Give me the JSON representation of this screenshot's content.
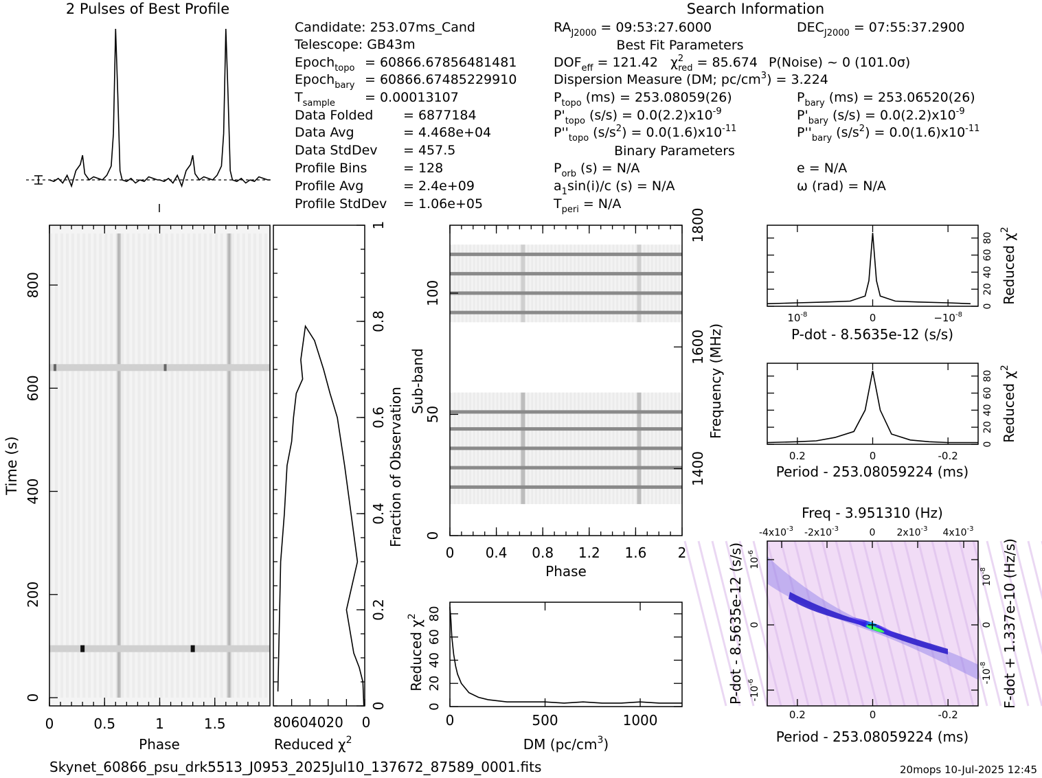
{
  "profile_title": "2 Pulses of Best Profile",
  "search_title": "Search Information",
  "best_fit_title": "Best Fit Parameters",
  "binary_title": "Binary Parameters",
  "file_name": "Skynet_60866_psu_drk5513_J0953_2025Jul10_137672_87589_0001.fits",
  "timestamp": "20mops  10-Jul-2025 12:45",
  "info_left": [
    {
      "label": "Candidate:  253.07ms_Cand",
      "value": ""
    },
    {
      "label": "Telescope:  GB43m",
      "value": ""
    },
    {
      "label": "Epoch",
      "sub": "topo",
      "value": "= 60866.67856481481"
    },
    {
      "label": "Epoch",
      "sub": "bary",
      "value": "= 60866.67485229910"
    },
    {
      "label": "T",
      "sub": "sample",
      "value": "=    0.00013107"
    },
    {
      "label": "Data Folded",
      "value": "=    6877184"
    },
    {
      "label": "Data Avg",
      "value": "=    4.468e+04"
    },
    {
      "label": "Data StdDev",
      "value": "=    457.5"
    },
    {
      "label": "Profile Bins",
      "value": "=    128"
    },
    {
      "label": "Profile Avg",
      "value": "=    2.4e+09"
    },
    {
      "label": "Profile StdDev",
      "value": "=    1.06e+05"
    }
  ],
  "info_mid": {
    "ra": "RA",
    "ra_sub": "J2000",
    "ra_val": "= 09:53:27.6000",
    "dec": "DEC",
    "dec_sub": "J2000",
    "dec_val": "= 07:55:37.2900",
    "dof": "DOF",
    "dof_sub": "eff",
    "dof_val": "= 121.42",
    "chi": "χ",
    "chi_sup": "2",
    "chi_sub": "red",
    "chi_val": "= 85.674",
    "pnoise": "P(Noise) ~ 0    (101.0σ)",
    "dm": "Dispersion Measure (DM; pc/cm",
    "dm_sup": "3",
    "dm_val": ") = 3.224",
    "ptopo": "P",
    "ptopo_sub": "topo",
    "ptopo_val": "(ms) =  253.08059(26)",
    "pbary": "P",
    "pbary_sub": "bary",
    "pbary_val": "(ms) =  253.06520(26)",
    "pdtopo": "P'",
    "pdtopo_sub": "topo",
    "pdtopo_val": "(s/s) = 0.0(2.2)x10",
    "pdtopo_exp": "-9",
    "pdbary": "P'",
    "pdbary_sub": "bary",
    "pdbary_val": "(s/s) = 0.0(2.2)x10",
    "pdbary_exp": "-9",
    "pddtopo": "P''",
    "pddtopo_sub": "topo",
    "pddtopo_val": "(s/s",
    "pddtopo_sup2": "2",
    "pddtopo_val2": ") = 0.0(1.6)x10",
    "pddtopo_exp": "-11",
    "pddbary": "P''",
    "pddbary_sub": "bary",
    "pddbary_val": "(s/s",
    "pddbary_sup2": "2",
    "pddbary_val2": ") = 0.0(1.6)x10",
    "pddbary_exp": "-11",
    "porb": "P",
    "porb_sub": "orb",
    "porb_val": "(s) = N/A",
    "ecc": "e = N/A",
    "a1": "a",
    "a1_sub": "1",
    "a1_val": "sin(i)/c (s) = N/A",
    "omega": "ω (rad) = N/A",
    "tperi": "T",
    "tperi_sub": "peri",
    "tperi_val": "= N/A"
  },
  "chart_data": [
    {
      "type": "line",
      "name": "profile",
      "title": "2 Pulses of Best Profile",
      "x": [
        0,
        0.04,
        0.08,
        0.12,
        0.16,
        0.2,
        0.24,
        0.28,
        0.3,
        0.32,
        0.36,
        0.4,
        0.44,
        0.48,
        0.52,
        0.56,
        0.58,
        0.6,
        0.62,
        0.64,
        0.66,
        0.7,
        0.74,
        0.78,
        0.82,
        0.86,
        0.9,
        0.94,
        0.98,
        1.0,
        1.04,
        1.08,
        1.12,
        1.16,
        1.2,
        1.24,
        1.28,
        1.3,
        1.32,
        1.36,
        1.4,
        1.44,
        1.48,
        1.52,
        1.56,
        1.58,
        1.6,
        1.62,
        1.64,
        1.66,
        1.7,
        1.74,
        1.78,
        1.82,
        1.86,
        1.9,
        1.94,
        1.98,
        2.0
      ],
      "y": [
        0.0,
        -0.01,
        0.01,
        -0.02,
        0.03,
        -0.04,
        0.06,
        0.1,
        0.16,
        0.04,
        0.0,
        0.02,
        0.01,
        0.0,
        0.03,
        0.09,
        0.3,
        0.98,
        0.55,
        0.06,
        0.0,
        -0.01,
        0.01,
        -0.02,
        0.0,
        -0.01,
        0.02,
        0.01,
        0.0,
        0.0,
        -0.01,
        0.01,
        -0.02,
        0.03,
        -0.04,
        0.06,
        0.1,
        0.16,
        0.04,
        0.0,
        0.02,
        0.01,
        0.0,
        0.03,
        0.09,
        0.3,
        0.98,
        0.55,
        0.06,
        0.0,
        -0.01,
        0.01,
        -0.02,
        0.0,
        -0.01,
        0.02,
        0.01,
        0.0,
        0.0
      ]
    },
    {
      "type": "heatmap",
      "name": "time-phase",
      "xlabel": "Phase",
      "ylabel": "Time (s)",
      "xlim": [
        0,
        2
      ],
      "ylim": [
        0,
        900
      ],
      "x_ticks": [
        "0",
        "0.5",
        "1",
        "1.5"
      ],
      "y_ticks": [
        "0",
        "200",
        "400",
        "600",
        "800"
      ],
      "pulse_phases": [
        0.63,
        1.63
      ],
      "bright_rows_s": [
        640,
        95
      ]
    },
    {
      "type": "line",
      "name": "time-chi2",
      "xlabel": "Reduced χ2",
      "ylabel": "Fraction of Observation",
      "xlim": [
        100,
        0
      ],
      "ylim": [
        0,
        1
      ],
      "x_ticks": [
        "80",
        "60",
        "40",
        "20",
        "0"
      ],
      "y_ticks": [
        "0",
        "0.2",
        "0.4",
        "0.6",
        "0.8",
        "1"
      ],
      "x": [
        1,
        2,
        6,
        12,
        20,
        8,
        15,
        22,
        30,
        38,
        45,
        55,
        65,
        70,
        68,
        75,
        78,
        80,
        85,
        88,
        92,
        95
      ],
      "y": [
        0,
        0.05,
        0.08,
        0.11,
        0.2,
        0.3,
        0.4,
        0.5,
        0.6,
        0.65,
        0.7,
        0.76,
        0.79,
        0.72,
        0.68,
        0.65,
        0.6,
        0.55,
        0.5,
        0.4,
        0.3,
        0.03
      ]
    },
    {
      "type": "heatmap",
      "name": "subband-phase",
      "xlabel": "Phase",
      "ylabel": "Sub-band",
      "y2label": "Frequency (MHz)",
      "xlim": [
        0,
        2
      ],
      "ylim": [
        0,
        128
      ],
      "x_ticks": [
        "0",
        "0.4",
        "0.8",
        "1.2",
        "1.6",
        "2"
      ],
      "y_ticks": [
        "0",
        "50",
        "100"
      ],
      "y2_ticks": [
        "1400",
        "1600",
        "1800"
      ],
      "pulse_phases": [
        0.63,
        1.63
      ],
      "bright_subbands": [
        116,
        108,
        100,
        92,
        51,
        44,
        36,
        28,
        20
      ]
    },
    {
      "type": "line",
      "name": "dm-chi2",
      "xlabel": "DM (pc/cm3)",
      "ylabel": "Reduced χ2",
      "xlim": [
        0,
        1220
      ],
      "ylim": [
        0,
        90
      ],
      "x_ticks": [
        "0",
        "500",
        "1000"
      ],
      "y_ticks": [
        "0",
        "20",
        "40",
        "60",
        "80"
      ],
      "x": [
        0,
        5,
        10,
        20,
        30,
        40,
        60,
        80,
        100,
        150,
        200,
        300,
        400,
        500,
        600,
        700,
        800,
        900,
        1000,
        1100,
        1220
      ],
      "y": [
        86,
        75,
        60,
        45,
        35,
        28,
        20,
        16,
        12,
        8,
        6,
        4,
        4,
        4,
        3,
        4,
        3,
        3,
        4,
        3,
        3
      ]
    },
    {
      "type": "line",
      "name": "pdot-chi2",
      "xlabel": "P-dot - 8.5635e-12 (s/s)",
      "ylabel": "Reduced χ2",
      "x_ticks": [
        "10",
        "0",
        "-10"
      ],
      "y_ticks": [
        "0",
        "20",
        "40",
        "60",
        "80"
      ],
      "x": [
        -1.3,
        -1,
        -0.6,
        -0.3,
        -0.1,
        -0.05,
        0,
        0.05,
        0.1,
        0.3,
        0.6,
        1,
        1.4
      ],
      "y": [
        3,
        4,
        5,
        6,
        12,
        30,
        86,
        30,
        12,
        6,
        5,
        4,
        3
      ]
    },
    {
      "type": "line",
      "name": "period-chi2",
      "xlabel": "Period - 253.08059224 (ms)",
      "ylabel": "Reduced χ2",
      "x_ticks": [
        "0.2",
        "0",
        "-0.2"
      ],
      "y_ticks": [
        "0",
        "20",
        "40",
        "60",
        "80"
      ],
      "x": [
        0.28,
        0.2,
        0.15,
        0.1,
        0.05,
        0.02,
        0,
        -0.02,
        -0.05,
        -0.1,
        -0.15,
        -0.2,
        -0.28
      ],
      "y": [
        2,
        3,
        4,
        8,
        15,
        40,
        86,
        40,
        12,
        5,
        3,
        2,
        2
      ]
    },
    {
      "type": "heatmap",
      "name": "period-pdot",
      "title": "Freq - 3.951310 (Hz)",
      "xlabel": "Period - 253.08059224 (ms)",
      "ylabel": "P-dot - 8.5635e-12 (s/s)",
      "y2label": "F-dot + 1.337e-10 (Hz/s)",
      "x_ticks": [
        "0.2",
        "0",
        "-0.2"
      ],
      "top_ticks": [
        "-4x10",
        "-2x10",
        "0",
        "2x10",
        "4x10"
      ],
      "y_ticks": [
        "10",
        "0",
        "-10"
      ],
      "y2_ticks": [
        "10",
        "0",
        "-10"
      ]
    }
  ]
}
